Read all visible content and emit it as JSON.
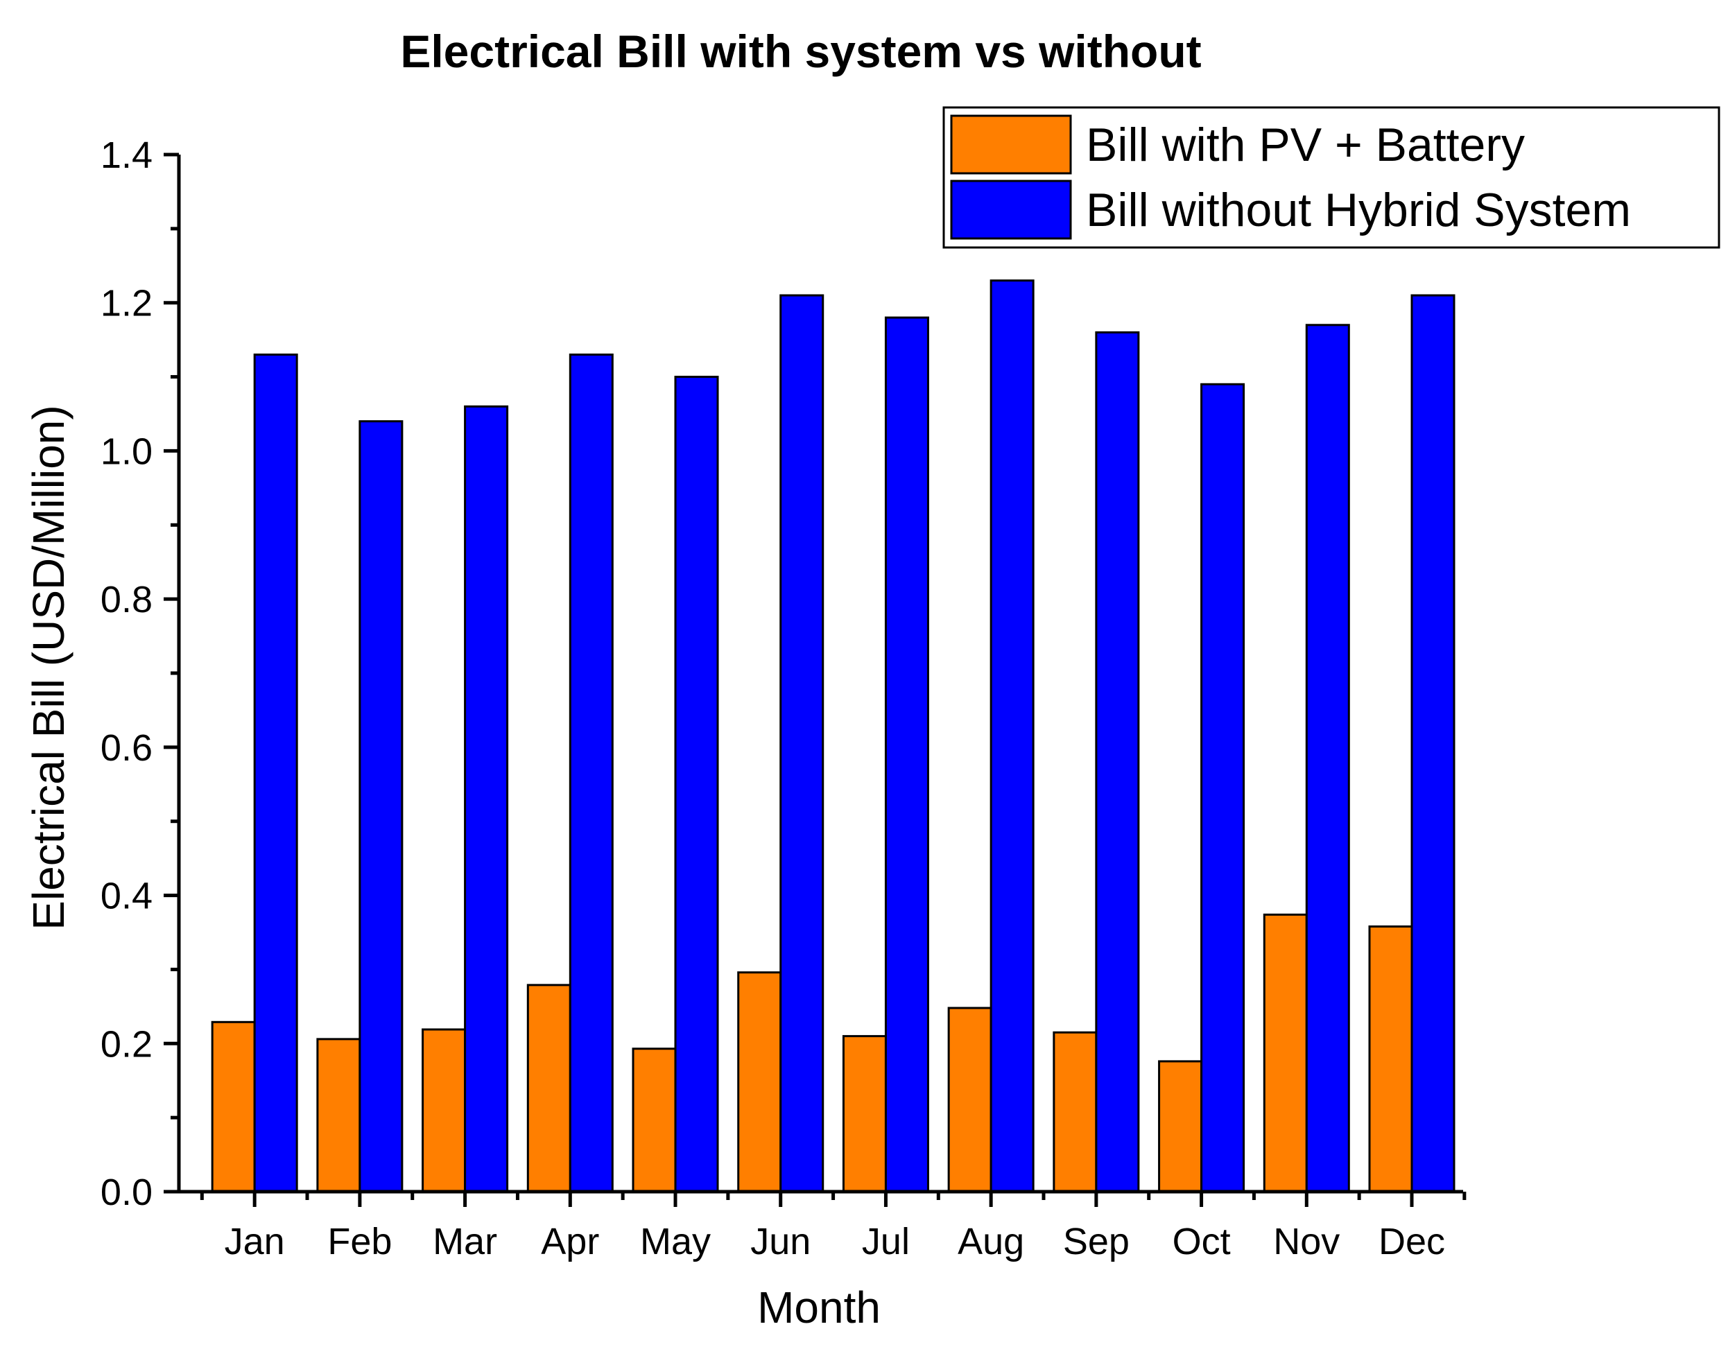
{
  "chart_data": {
    "type": "bar",
    "title": "Electrical Bill with system vs without",
    "xlabel": "Month",
    "ylabel": "Electrical Bill (USD/Million)",
    "categories": [
      "Jan",
      "Feb",
      "Mar",
      "Apr",
      "May",
      "Jun",
      "Jul",
      "Aug",
      "Sep",
      "Oct",
      "Nov",
      "Dec"
    ],
    "ylim": [
      0,
      1.4
    ],
    "yticks": [
      "0.0",
      "0.2",
      "0.4",
      "0.6",
      "0.8",
      "1.0",
      "1.2",
      "1.4"
    ],
    "grid": false,
    "legend_position": "top-right",
    "series": [
      {
        "name": "Bill with PV + Battery",
        "color": "#ff7f00",
        "values": [
          0.229,
          0.206,
          0.219,
          0.279,
          0.193,
          0.296,
          0.21,
          0.248,
          0.215,
          0.176,
          0.374,
          0.358
        ]
      },
      {
        "name": "Bill without Hybrid System",
        "color": "#0000ff",
        "values": [
          1.13,
          1.04,
          1.06,
          1.13,
          1.1,
          1.21,
          1.18,
          1.23,
          1.16,
          1.09,
          1.17,
          1.21
        ]
      }
    ]
  }
}
